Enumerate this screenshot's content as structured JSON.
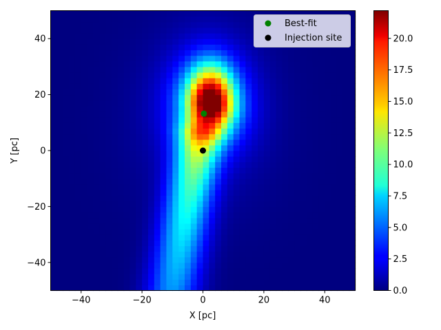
{
  "chart_data": {
    "type": "heatmap",
    "title": "",
    "xlabel": "X [pc]",
    "ylabel": "Y [pc]",
    "xlim": [
      -50,
      50
    ],
    "ylim": [
      -50,
      50
    ],
    "x_ticks": [
      -40,
      -20,
      0,
      20,
      40
    ],
    "y_ticks": [
      -40,
      -20,
      0,
      20,
      40
    ],
    "grid": false,
    "colormap": "jet",
    "colorbar": {
      "min": 0.0,
      "max": 22.2,
      "ticks": [
        "0.0",
        "2.5",
        "5.0",
        "7.5",
        "10.0",
        "12.5",
        "15.0",
        "17.5",
        "20.0"
      ]
    },
    "heatmap_model": {
      "grid_cells": 50,
      "components": [
        {
          "kind": "blob",
          "x0": 2.5,
          "y0": 17,
          "sx": 5.0,
          "sy_up": 8.5,
          "sy_down": 6.0,
          "amp": 18.0
        },
        {
          "kind": "blob",
          "x0": 2.0,
          "y0": 16,
          "sx": 9.0,
          "sy_up": 13.0,
          "sy_down": 11.0,
          "amp": 6.5
        },
        {
          "kind": "blob",
          "x0": 0.0,
          "y0": 10,
          "sx": 16.0,
          "sy_up": 25.0,
          "sy_down": 22.0,
          "amp": 1.3
        },
        {
          "kind": "tail",
          "y_from": 5,
          "y_to": -50,
          "x_at_top": -1,
          "x_at_bottom": -10,
          "width_top": 5.0,
          "width_bottom": 6.0,
          "amp_top": 10.5,
          "amp_bottom": 6.0
        }
      ]
    },
    "series": [
      {
        "name": "Best-fit",
        "type": "scatter",
        "color": "#008000",
        "points": [
          {
            "x": 0.3,
            "y": 13.2
          }
        ]
      },
      {
        "name": "Injection site",
        "type": "scatter",
        "color": "#000000",
        "points": [
          {
            "x": 0.0,
            "y": 0.0
          }
        ]
      }
    ],
    "legend": {
      "placement": "top-right",
      "entries": [
        {
          "label": "Best-fit",
          "color": "#008000"
        },
        {
          "label": "Injection site",
          "color": "#000000"
        }
      ]
    }
  }
}
